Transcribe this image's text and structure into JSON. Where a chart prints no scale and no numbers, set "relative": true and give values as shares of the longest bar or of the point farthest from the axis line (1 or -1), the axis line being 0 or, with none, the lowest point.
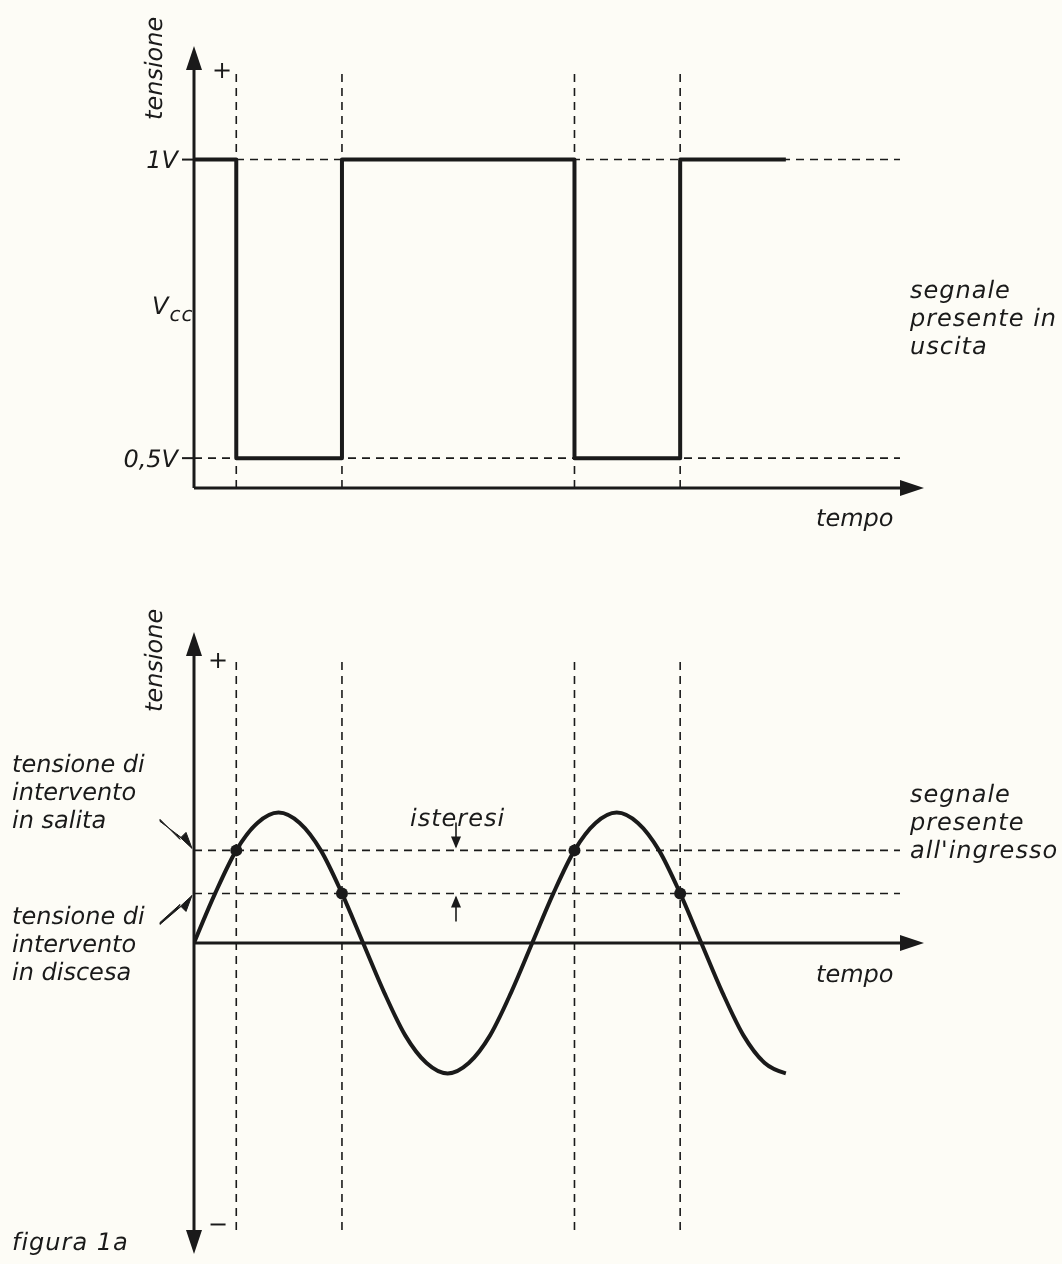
{
  "chart_data": [
    {
      "type": "step",
      "ylabel": "tensione",
      "xlabel": "tempo",
      "categories": [
        null,
        null,
        null,
        null,
        null,
        null,
        null,
        null,
        null,
        null,
        null,
        null,
        null,
        null,
        null,
        null,
        null,
        null,
        null,
        null,
        null,
        null,
        null,
        null,
        null,
        null,
        null,
        null,
        null
      ],
      "series": [
        {
          "color": "#1a1a1a",
          "values": [
            1,
            1,
            0.5,
            0.5,
            0.5,
            0.5,
            0.5,
            1,
            1,
            1,
            1,
            1,
            1,
            1,
            1,
            1,
            1,
            1,
            0.5,
            0.5,
            0.5,
            0.5,
            0.5,
            1,
            1,
            1,
            1,
            1,
            1
          ]
        }
      ],
      "ylim": [
        0.45,
        1.15
      ],
      "yticks": [
        {
          "value": 1,
          "label": "1V"
        },
        {
          "value": 0.5,
          "label": "0,5V"
        }
      ],
      "ref_lines": [
        {
          "axis": "y",
          "value": 1,
          "line_style": "dashed"
        },
        {
          "axis": "y",
          "value": 0.5,
          "line_style": "dashed"
        }
      ],
      "annotations": [
        "+",
        "V$_{cc}$",
        "segnale presente in uscita"
      ],
      "grid": "x"
    },
    {
      "type": "line",
      "ylabel": "tensione",
      "xlabel": "tempo",
      "relative": true,
      "categories": [
        null,
        null,
        null,
        null,
        null,
        null,
        null,
        null,
        null,
        null,
        null,
        null,
        null,
        null,
        null,
        null,
        null,
        null,
        null,
        null,
        null,
        null,
        null,
        null,
        null,
        null,
        null,
        null,
        null
      ],
      "series": [
        {
          "color": "#1a1a1a",
          "values": [
            0,
            0.38,
            0.71,
            0.92,
            1,
            0.92,
            0.71,
            0.38,
            0,
            -0.38,
            -0.71,
            -0.92,
            -1,
            -0.92,
            -0.71,
            -0.38,
            0,
            0.38,
            0.71,
            0.92,
            1,
            0.92,
            0.71,
            0.38,
            0,
            -0.38,
            -0.71,
            -0.92,
            -1
          ]
        },
        {
          "type": "scatter",
          "marker": "circle",
          "color": "#1a1a1a",
          "values": [
            null,
            null,
            0.71,
            null,
            null,
            null,
            null,
            0.38,
            null,
            null,
            null,
            null,
            null,
            null,
            null,
            null,
            null,
            null,
            0.71,
            null,
            null,
            null,
            null,
            0.38,
            null,
            null,
            null,
            null,
            null
          ]
        }
      ],
      "ref_lines": [
        {
          "axis": "y",
          "value": 0.71,
          "label": "tensione di intervento in salita",
          "line_style": "dashed"
        },
        {
          "axis": "y",
          "value": 0.38,
          "label": "tensione di intervento in discesa",
          "line_style": "dashed"
        }
      ],
      "annotations": [
        "+",
        "−",
        "isteresi",
        "segnale presente all'ingresso",
        "figura 1a"
      ],
      "grid": "x"
    }
  ]
}
